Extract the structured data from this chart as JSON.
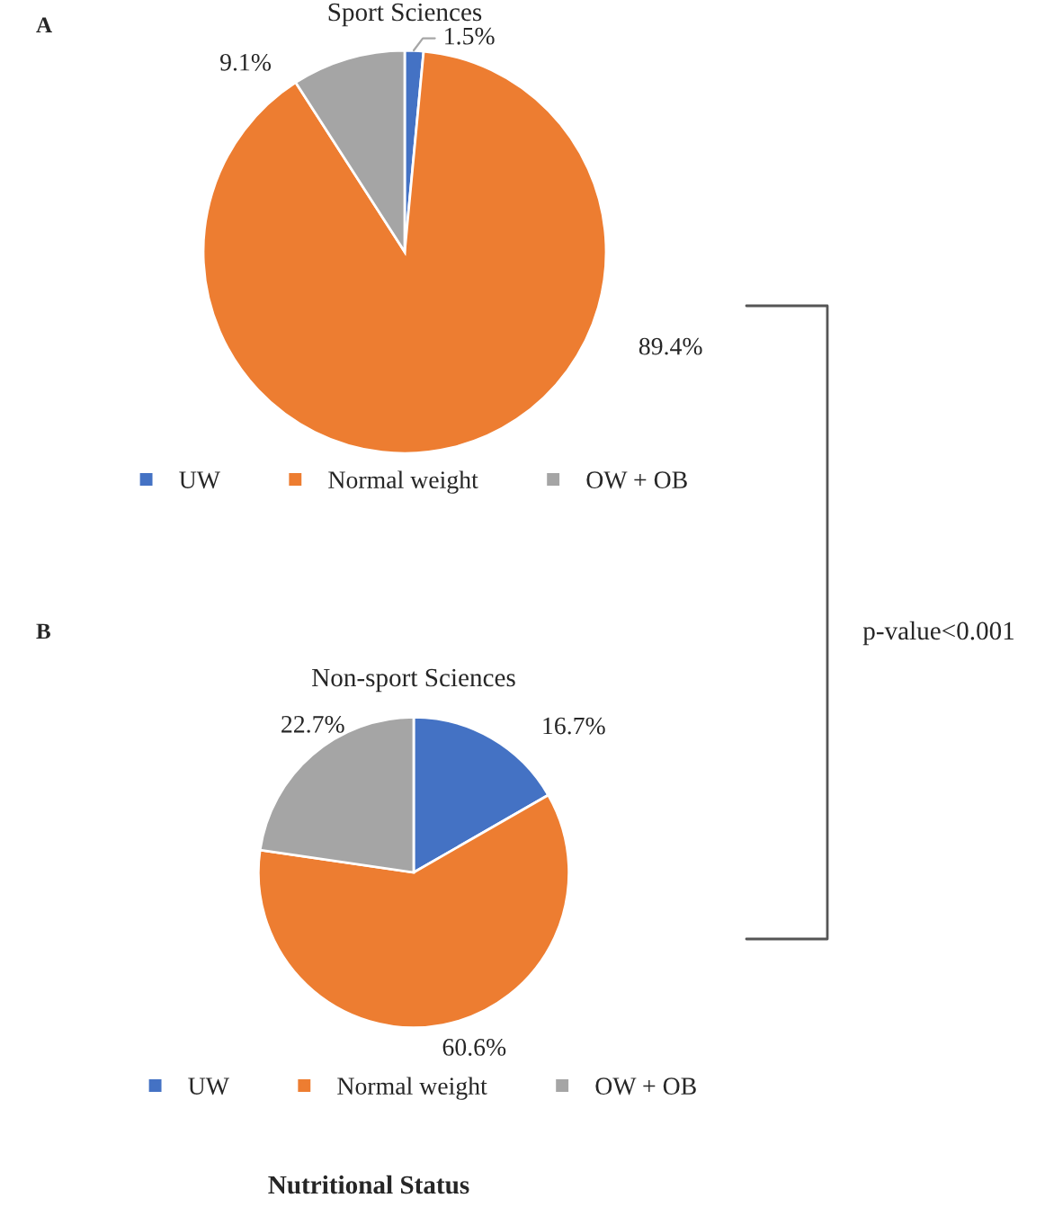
{
  "chart_data": [
    {
      "type": "pie",
      "title": "Sport Sciences",
      "categories": [
        "UW",
        "Normal weight",
        "OW + OB"
      ],
      "values": [
        1.5,
        89.4,
        9.1
      ],
      "value_labels": [
        "1.5%",
        "89.4%",
        "9.1%"
      ],
      "colors": [
        "#4472c4",
        "#ed7d31",
        "#a5a5a5"
      ],
      "legend": "bottom",
      "annotations": [
        "A"
      ]
    },
    {
      "type": "pie",
      "title": "Non-sport Sciences",
      "categories": [
        "UW",
        "Normal weight",
        "OW + OB"
      ],
      "values": [
        16.7,
        60.6,
        22.7
      ],
      "value_labels": [
        "16.7%",
        "60.6%",
        "22.7%"
      ],
      "colors": [
        "#4472c4",
        "#ed7d31",
        "#a5a5a5"
      ],
      "legend": "bottom",
      "annotations": [
        "B",
        "p-value<0.001",
        "Nutritional Status"
      ]
    }
  ]
}
